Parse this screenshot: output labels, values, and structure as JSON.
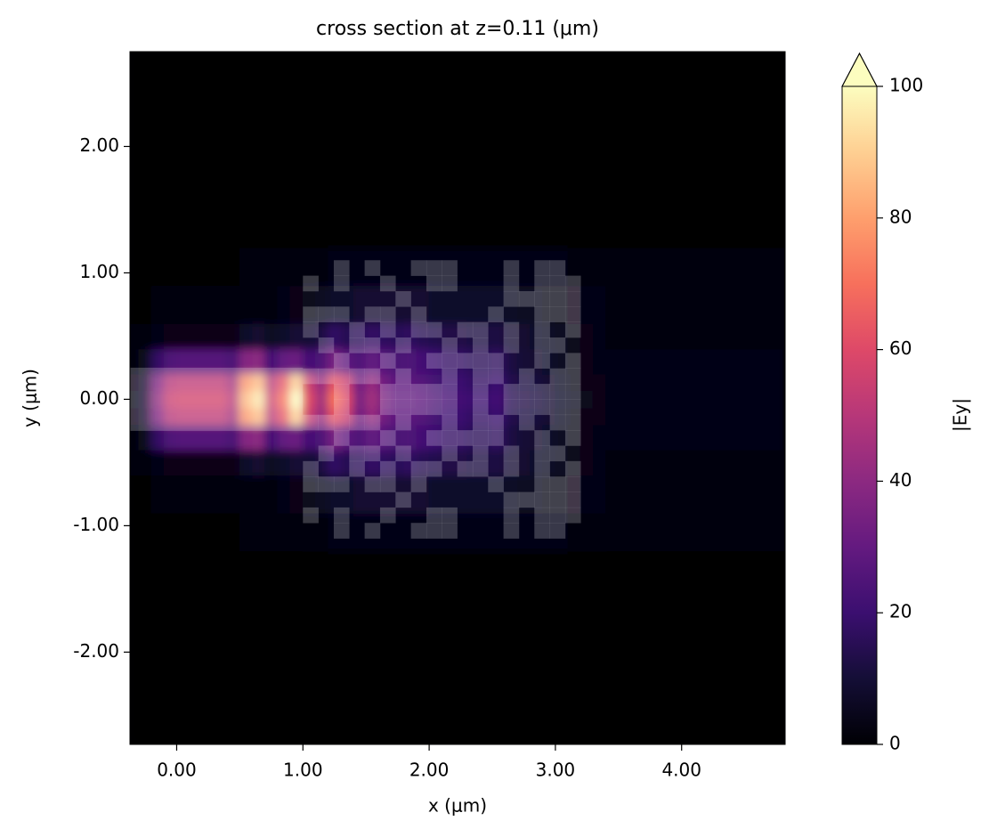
{
  "chart_data": {
    "type": "heatmap",
    "title": "cross section at z=0.11 (μm)",
    "x_label": "x (μm)",
    "y_label": "y (μm)",
    "xlim": [
      -0.37,
      4.82
    ],
    "ylim": [
      -2.73,
      2.75
    ],
    "xticks": [
      {
        "value": 0,
        "label": "0.00"
      },
      {
        "value": 1,
        "label": "1.00"
      },
      {
        "value": 2,
        "label": "2.00"
      },
      {
        "value": 3,
        "label": "3.00"
      },
      {
        "value": 4,
        "label": "4.00"
      }
    ],
    "yticks": [
      {
        "value": -2,
        "label": "-2.00"
      },
      {
        "value": -1,
        "label": "-1.00"
      },
      {
        "value": 0,
        "label": "0.00"
      },
      {
        "value": 1,
        "label": "1.00"
      },
      {
        "value": 2,
        "label": "2.00"
      }
    ],
    "x_edges": [
      -0.37,
      -0.3,
      -0.2,
      -0.1,
      0,
      0.1,
      0.2,
      0.3,
      0.4,
      0.5,
      0.6,
      0.7,
      0.8,
      0.9,
      1,
      1.1,
      1.2,
      1.3,
      1.4,
      1.5,
      1.6,
      1.7,
      1.8,
      1.9,
      2,
      2.1,
      2.2,
      2.3,
      2.4,
      2.5,
      2.6,
      2.7,
      2.8,
      2.9,
      3,
      3.1,
      3.2,
      3.3,
      3.4,
      4.82
    ],
    "y_edges": [
      -2.73,
      -1.2,
      -0.9,
      -0.6,
      -0.4,
      -0.2,
      -0.07,
      0.07,
      0.2,
      0.4,
      0.6,
      0.9,
      1.2,
      2.75
    ],
    "values": [
      [
        0,
        0,
        0,
        0,
        0,
        0,
        0,
        0,
        0,
        0,
        0,
        0,
        0,
        0,
        0,
        0,
        0,
        0,
        0,
        0,
        0,
        0,
        0,
        0,
        0,
        0,
        0,
        0,
        0,
        0,
        0,
        0,
        0,
        0,
        0,
        0,
        0,
        0,
        0
      ],
      [
        0,
        0,
        0,
        0,
        0,
        0,
        0,
        0,
        0,
        1,
        1,
        1,
        1,
        1,
        2,
        2,
        3,
        3,
        3,
        3,
        3,
        3,
        3,
        3,
        3,
        3,
        3,
        3,
        3,
        3,
        3,
        3,
        3,
        3,
        3,
        2,
        2,
        2,
        1
      ],
      [
        0,
        0,
        1,
        1,
        1,
        1,
        1,
        1,
        1,
        2,
        2,
        2,
        3,
        4,
        5,
        6,
        8,
        8,
        9,
        9,
        9,
        9,
        9,
        9,
        8,
        8,
        8,
        8,
        8,
        8,
        7,
        6,
        6,
        5,
        5,
        4,
        3,
        3,
        2
      ],
      [
        1,
        1,
        3,
        4,
        4,
        4,
        4,
        4,
        4,
        8,
        9,
        6,
        8,
        10,
        10,
        12,
        18,
        15,
        16,
        18,
        17,
        16,
        17,
        15,
        14,
        13,
        13,
        12,
        12,
        12,
        10,
        9,
        8,
        7,
        6,
        5,
        4,
        3,
        2
      ],
      [
        2,
        5,
        18,
        25,
        26,
        26,
        26,
        26,
        24,
        38,
        40,
        22,
        30,
        32,
        22,
        25,
        35,
        28,
        25,
        30,
        26,
        24,
        25,
        22,
        20,
        18,
        18,
        16,
        16,
        17,
        12,
        10,
        9,
        8,
        6,
        5,
        4,
        3,
        3
      ],
      [
        4,
        9,
        36,
        50,
        52,
        52,
        52,
        52,
        45,
        78,
        86,
        50,
        63,
        90,
        55,
        42,
        63,
        55,
        33,
        42,
        33,
        28,
        28,
        26,
        23,
        20,
        20,
        18,
        18,
        20,
        14,
        12,
        11,
        9,
        7,
        5,
        4,
        4,
        3
      ],
      [
        5,
        10,
        40,
        55,
        57,
        57,
        57,
        57,
        50,
        85,
        95,
        55,
        70,
        100,
        60,
        45,
        70,
        60,
        35,
        45,
        35,
        30,
        30,
        28,
        25,
        22,
        22,
        20,
        20,
        22,
        15,
        13,
        12,
        10,
        8,
        6,
        5,
        4,
        3
      ],
      [
        4,
        9,
        36,
        50,
        52,
        52,
        52,
        52,
        45,
        78,
        86,
        50,
        63,
        90,
        55,
        42,
        63,
        55,
        33,
        42,
        33,
        28,
        28,
        26,
        23,
        20,
        20,
        18,
        18,
        20,
        14,
        12,
        11,
        9,
        7,
        5,
        4,
        4,
        3
      ],
      [
        2,
        5,
        18,
        25,
        26,
        26,
        26,
        26,
        24,
        38,
        40,
        22,
        30,
        32,
        22,
        25,
        35,
        28,
        25,
        30,
        26,
        24,
        25,
        22,
        20,
        18,
        18,
        16,
        16,
        17,
        12,
        10,
        9,
        8,
        6,
        5,
        4,
        3,
        3
      ],
      [
        1,
        1,
        3,
        4,
        4,
        4,
        4,
        4,
        4,
        8,
        9,
        6,
        8,
        10,
        10,
        12,
        18,
        15,
        16,
        18,
        17,
        16,
        17,
        15,
        14,
        13,
        13,
        12,
        12,
        12,
        10,
        9,
        8,
        7,
        6,
        5,
        4,
        3,
        2
      ],
      [
        0,
        0,
        1,
        1,
        1,
        1,
        1,
        1,
        1,
        2,
        2,
        2,
        3,
        4,
        5,
        6,
        8,
        8,
        9,
        9,
        9,
        9,
        9,
        9,
        8,
        8,
        8,
        8,
        8,
        8,
        7,
        6,
        6,
        5,
        5,
        4,
        3,
        3,
        2
      ],
      [
        0,
        0,
        0,
        0,
        0,
        0,
        0,
        0,
        0,
        1,
        1,
        1,
        1,
        1,
        2,
        2,
        3,
        3,
        3,
        3,
        3,
        3,
        3,
        3,
        3,
        3,
        3,
        3,
        3,
        3,
        3,
        3,
        3,
        3,
        3,
        2,
        2,
        2,
        1
      ],
      [
        0,
        0,
        0,
        0,
        0,
        0,
        0,
        0,
        0,
        0,
        0,
        0,
        0,
        0,
        0,
        0,
        0,
        0,
        0,
        0,
        0,
        0,
        0,
        0,
        0,
        0,
        0,
        0,
        0,
        0,
        0,
        0,
        0,
        0,
        0,
        0,
        0,
        0,
        0
      ]
    ],
    "colormap": "magma",
    "clim": [
      0,
      100
    ],
    "cticks": [
      0,
      20,
      40,
      60,
      80,
      100
    ],
    "colorbar_label": "|Ey|",
    "colorbar_extend": "max",
    "structure": {
      "waveguide": {
        "x": [
          -0.37,
          1.0
        ],
        "y": [
          -0.25,
          0.25
        ]
      },
      "design": {
        "xlim": [
          1.0,
          3.2
        ],
        "ylim": [
          -1.1,
          1.1
        ],
        "pixels": [
          [
            0,
            0,
            1,
            0,
            1,
            0,
            0,
            1,
            1,
            1,
            0,
            0,
            0,
            1,
            0,
            1,
            1,
            0
          ],
          [
            1,
            0,
            1,
            0,
            0,
            1,
            0,
            0,
            1,
            1,
            0,
            0,
            0,
            1,
            0,
            1,
            1,
            1
          ],
          [
            0,
            0,
            0,
            0,
            0,
            0,
            1,
            0,
            0,
            0,
            0,
            0,
            0,
            1,
            1,
            1,
            1,
            1
          ],
          [
            1,
            1,
            1,
            0,
            1,
            1,
            0,
            1,
            0,
            0,
            0,
            0,
            1,
            0,
            0,
            1,
            1,
            1
          ],
          [
            1,
            0,
            0,
            1,
            0,
            1,
            0,
            1,
            1,
            0,
            1,
            1,
            0,
            1,
            0,
            1,
            0,
            1
          ],
          [
            0,
            1,
            0,
            1,
            1,
            0,
            1,
            0,
            0,
            1,
            0,
            1,
            0,
            1,
            0,
            1,
            1,
            0
          ],
          [
            0,
            0,
            1,
            0,
            0,
            1,
            0,
            0,
            1,
            1,
            1,
            1,
            1,
            0,
            0,
            1,
            0,
            1
          ],
          [
            1,
            1,
            1,
            1,
            1,
            0,
            1,
            0,
            0,
            1,
            0,
            1,
            1,
            0,
            1,
            0,
            1,
            1
          ],
          [
            0,
            0,
            1,
            0,
            0,
            1,
            1,
            1,
            1,
            1,
            0,
            1,
            0,
            1,
            1,
            1,
            1,
            1
          ],
          [
            0,
            0,
            1,
            0,
            0,
            1,
            1,
            1,
            1,
            1,
            0,
            1,
            0,
            1,
            1,
            1,
            1,
            1
          ],
          [
            1,
            1,
            1,
            1,
            1,
            0,
            1,
            0,
            0,
            1,
            0,
            1,
            1,
            0,
            1,
            0,
            1,
            1
          ],
          [
            0,
            0,
            1,
            0,
            0,
            1,
            0,
            0,
            1,
            1,
            1,
            1,
            1,
            0,
            0,
            1,
            0,
            1
          ],
          [
            0,
            1,
            0,
            1,
            1,
            0,
            1,
            0,
            0,
            1,
            0,
            1,
            0,
            1,
            0,
            1,
            1,
            0
          ],
          [
            1,
            0,
            0,
            1,
            0,
            1,
            0,
            1,
            1,
            0,
            1,
            1,
            0,
            1,
            0,
            1,
            0,
            1
          ],
          [
            1,
            1,
            1,
            0,
            1,
            1,
            0,
            1,
            0,
            0,
            0,
            0,
            1,
            0,
            0,
            1,
            1,
            1
          ],
          [
            0,
            0,
            0,
            0,
            0,
            0,
            1,
            0,
            0,
            0,
            0,
            0,
            0,
            1,
            1,
            1,
            1,
            1
          ],
          [
            1,
            0,
            1,
            0,
            0,
            1,
            0,
            0,
            1,
            1,
            0,
            0,
            0,
            1,
            0,
            1,
            1,
            1
          ],
          [
            0,
            0,
            1,
            0,
            1,
            0,
            0,
            1,
            1,
            1,
            0,
            0,
            0,
            1,
            0,
            1,
            1,
            0
          ]
        ]
      }
    }
  }
}
